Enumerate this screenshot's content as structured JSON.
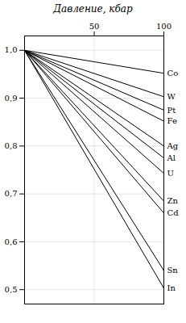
{
  "chart_data": {
    "type": "line",
    "title": "Давление, кбар",
    "x": [
      0,
      100
    ],
    "series": [
      {
        "name": "Co",
        "values": [
          1.0,
          0.952
        ]
      },
      {
        "name": "W",
        "values": [
          1.0,
          0.903
        ]
      },
      {
        "name": "Pt",
        "values": [
          1.0,
          0.875
        ]
      },
      {
        "name": "Fe",
        "values": [
          1.0,
          0.852
        ]
      },
      {
        "name": "Ag",
        "values": [
          1.0,
          0.8
        ]
      },
      {
        "name": "Al",
        "values": [
          1.0,
          0.775
        ]
      },
      {
        "name": "U",
        "values": [
          1.0,
          0.743
        ]
      },
      {
        "name": "Zn",
        "values": [
          1.0,
          0.685
        ]
      },
      {
        "name": "Cd",
        "values": [
          1.0,
          0.66
        ]
      },
      {
        "name": "Sn",
        "values": [
          1.0,
          0.54
        ]
      },
      {
        "name": "In",
        "values": [
          1.0,
          0.503
        ]
      }
    ],
    "color": "#000000",
    "xlim": [
      0,
      100
    ],
    "xticks": [
      50,
      100
    ],
    "ylim": [
      0.47,
      1.03
    ],
    "yticks": [
      {
        "value": 1.0,
        "label": "1,0"
      },
      {
        "value": 0.9,
        "label": "0,9"
      },
      {
        "value": 0.8,
        "label": "0,8"
      },
      {
        "value": 0.7,
        "label": "0,7"
      },
      {
        "value": 0.6,
        "label": "0,6"
      },
      {
        "value": 0.5,
        "label": "0,5"
      }
    ],
    "grid": true
  }
}
